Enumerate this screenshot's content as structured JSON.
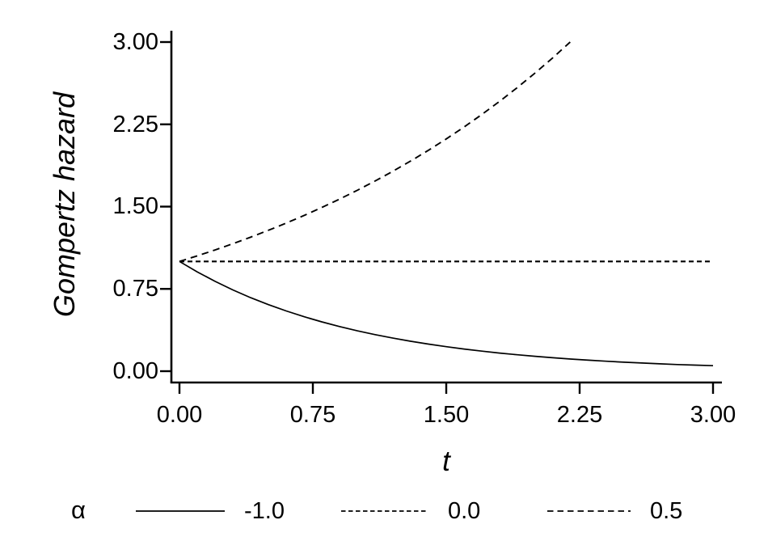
{
  "figure": {
    "background": "#ffffff",
    "ink_color": "#000000"
  },
  "chart_data": {
    "type": "line",
    "title": "",
    "xlabel": "t",
    "ylabel": "Gompertz hazard",
    "xlim": [
      0,
      3
    ],
    "ylim": [
      0,
      3
    ],
    "grid": false,
    "x_ticks": [
      {
        "value": 0.0,
        "label": "0.00"
      },
      {
        "value": 0.75,
        "label": "0.75"
      },
      {
        "value": 1.5,
        "label": "1.50"
      },
      {
        "value": 2.25,
        "label": "2.25"
      },
      {
        "value": 3.0,
        "label": "3.00"
      }
    ],
    "y_ticks": [
      {
        "value": 0.0,
        "label": "0.00"
      },
      {
        "value": 0.75,
        "label": "0.75"
      },
      {
        "value": 1.5,
        "label": "1.50"
      },
      {
        "value": 2.25,
        "label": "2.25"
      },
      {
        "value": 3.0,
        "label": "3.00"
      }
    ],
    "legend": {
      "title": "α",
      "position": "bottom",
      "entries": [
        {
          "label": "-1.0",
          "line_style": "solid"
        },
        {
          "label": "0.0",
          "line_style": "dash-fine"
        },
        {
          "label": "0.5",
          "line_style": "dash"
        }
      ]
    },
    "series": [
      {
        "name": "-1.0",
        "line_style": "solid",
        "points": [
          [
            0.0,
            1.0
          ],
          [
            0.1,
            0.9048
          ],
          [
            0.2,
            0.8187
          ],
          [
            0.3,
            0.7408
          ],
          [
            0.4,
            0.6703
          ],
          [
            0.5,
            0.6065
          ],
          [
            0.6,
            0.5488
          ],
          [
            0.7,
            0.4966
          ],
          [
            0.8,
            0.4493
          ],
          [
            0.9,
            0.4066
          ],
          [
            1.0,
            0.3679
          ],
          [
            1.1,
            0.3329
          ],
          [
            1.2,
            0.3012
          ],
          [
            1.3,
            0.2725
          ],
          [
            1.4,
            0.2466
          ],
          [
            1.5,
            0.2231
          ],
          [
            1.6,
            0.2019
          ],
          [
            1.7,
            0.1827
          ],
          [
            1.8,
            0.1653
          ],
          [
            1.9,
            0.1496
          ],
          [
            2.0,
            0.1353
          ],
          [
            2.1,
            0.1225
          ],
          [
            2.2,
            0.1108
          ],
          [
            2.3,
            0.1003
          ],
          [
            2.4,
            0.0907
          ],
          [
            2.5,
            0.0821
          ],
          [
            2.6,
            0.0743
          ],
          [
            2.7,
            0.0672
          ],
          [
            2.8,
            0.0608
          ],
          [
            2.9,
            0.055
          ],
          [
            3.0,
            0.0498
          ]
        ]
      },
      {
        "name": "0.0",
        "line_style": "dash-fine",
        "points": [
          [
            0.0,
            1.0
          ],
          [
            3.0,
            1.0
          ]
        ]
      },
      {
        "name": "0.5",
        "line_style": "dash",
        "points": [
          [
            0.0,
            1.0
          ],
          [
            0.1,
            1.0513
          ],
          [
            0.2,
            1.1052
          ],
          [
            0.3,
            1.1618
          ],
          [
            0.4,
            1.2214
          ],
          [
            0.5,
            1.284
          ],
          [
            0.6,
            1.3499
          ],
          [
            0.7,
            1.4191
          ],
          [
            0.8,
            1.4918
          ],
          [
            0.9,
            1.5683
          ],
          [
            1.0,
            1.6487
          ],
          [
            1.1,
            1.7333
          ],
          [
            1.2,
            1.8221
          ],
          [
            1.3,
            1.9155
          ],
          [
            1.4,
            2.0138
          ],
          [
            1.5,
            2.117
          ],
          [
            1.6,
            2.2255
          ],
          [
            1.7,
            2.3396
          ],
          [
            1.8,
            2.4596
          ],
          [
            1.9,
            2.5857
          ],
          [
            2.0,
            2.7183
          ],
          [
            2.1,
            2.8577
          ],
          [
            2.197,
            3.0
          ]
        ]
      }
    ]
  }
}
